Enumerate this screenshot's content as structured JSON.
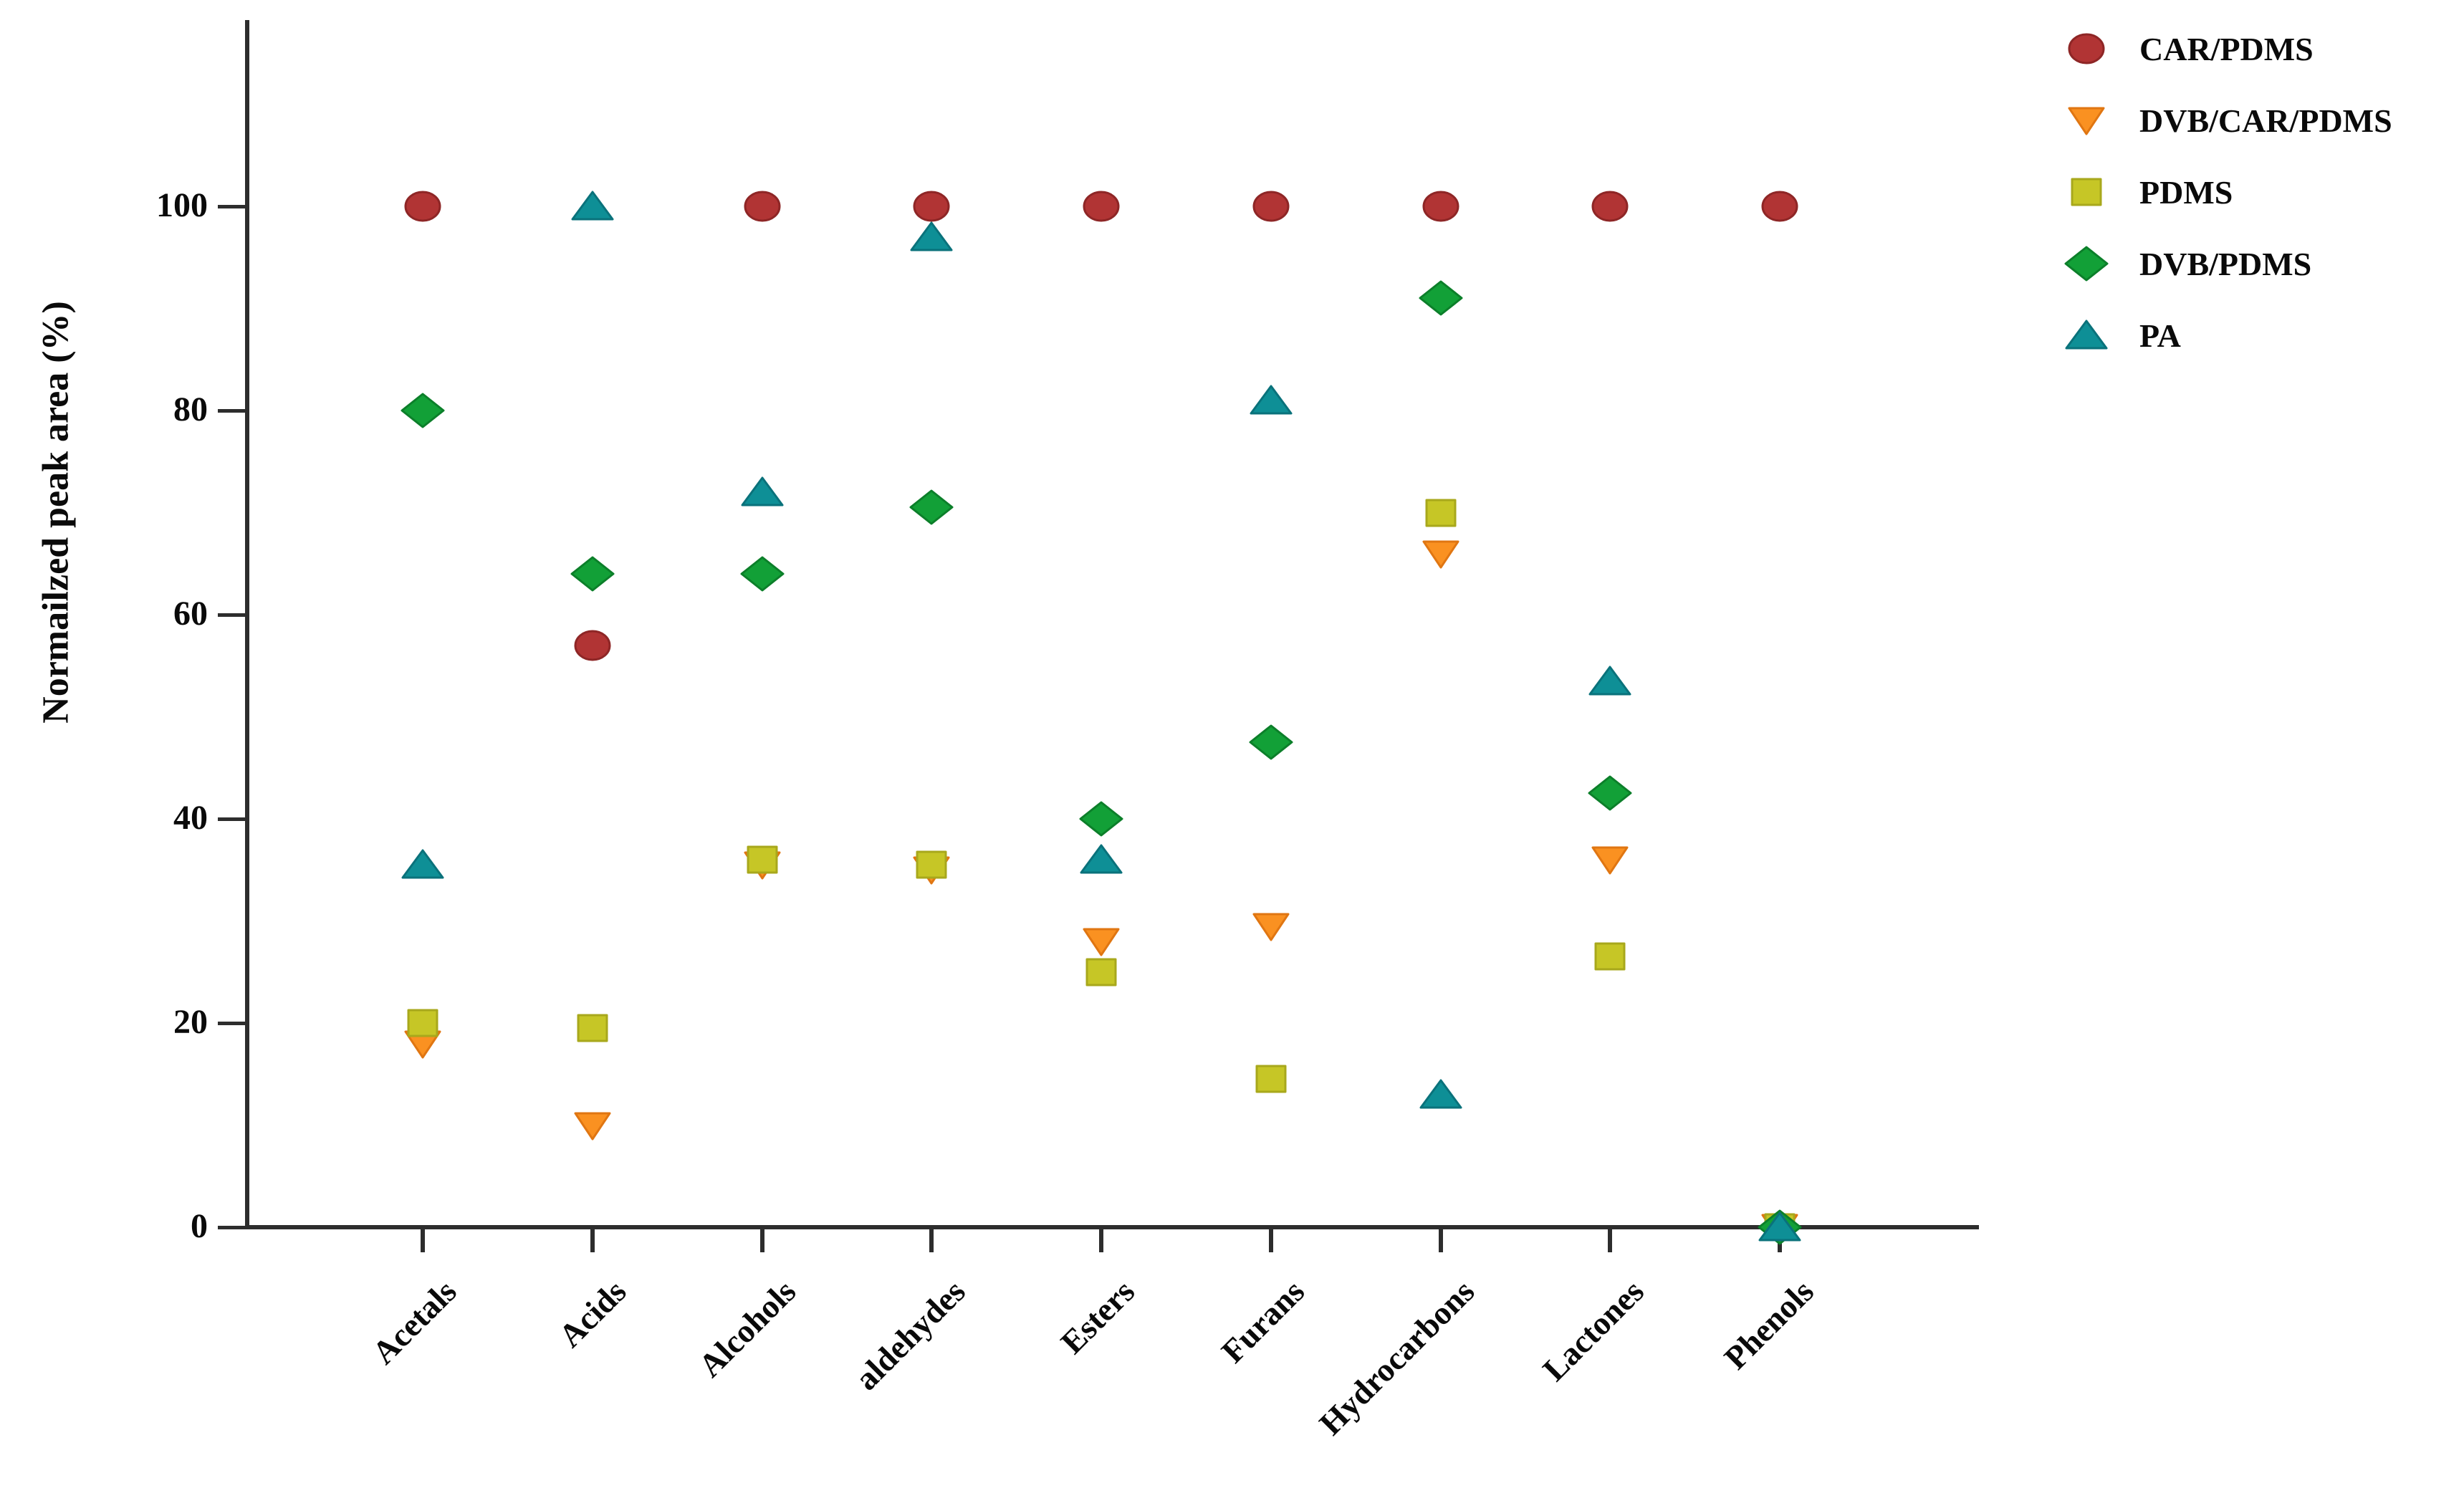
{
  "chart_data": {
    "type": "scatter",
    "title": "",
    "xlabel": "",
    "ylabel": "Normailzed peak area (%)",
    "ylim": [
      0,
      115
    ],
    "yticks": [
      0,
      20,
      40,
      60,
      80,
      100
    ],
    "grid": false,
    "legend_position": "outside-upper-right",
    "background_color": "#ffffff",
    "axis_color": "#2d2d2d",
    "categories": [
      "Acetals",
      "Acids",
      "Alcohols",
      "aldehydes",
      "Esters",
      "Furans",
      "Hydrocarbons",
      "Lactones",
      "Phenols"
    ],
    "series": [
      {
        "name": "CAR/PDMS",
        "marker": "circle",
        "color": "#B13434",
        "border_color": "#8E2626",
        "values": [
          100,
          57,
          100,
          100,
          100,
          100,
          100,
          100,
          100
        ]
      },
      {
        "name": "DVB/CAR/PDMS",
        "marker": "triangle-down",
        "color": "#FA9121",
        "border_color": "#E07612",
        "values": [
          18,
          10,
          35.5,
          35,
          28,
          29.5,
          66,
          36,
          0
        ]
      },
      {
        "name": "PDMS",
        "marker": "square",
        "color": "#C6C626",
        "border_color": "#A8A81C",
        "values": [
          20,
          19.5,
          36,
          35.5,
          25,
          14.5,
          70,
          26.5,
          0
        ]
      },
      {
        "name": "DVB/PDMS",
        "marker": "diamond",
        "color": "#12A037",
        "border_color": "#0C7F2A",
        "values": [
          80,
          64,
          64,
          70.5,
          40,
          47.5,
          91,
          42.5,
          0
        ]
      },
      {
        "name": "PA",
        "marker": "triangle-up",
        "color": "#0E8F96",
        "border_color": "#0A727B",
        "values": [
          35.5,
          100,
          72,
          97,
          36,
          81,
          13,
          53.5,
          0
        ]
      }
    ]
  }
}
